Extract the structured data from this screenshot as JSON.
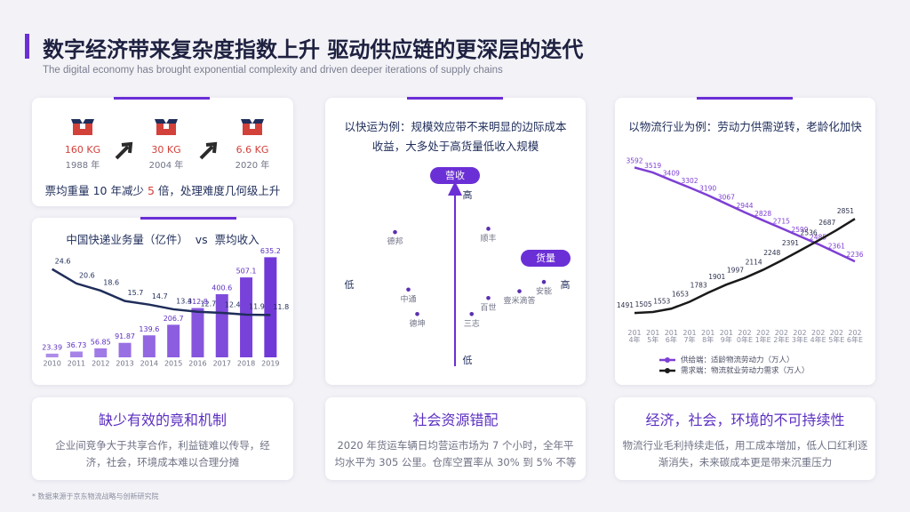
{
  "header": {
    "title": "数字经济带来复杂度指数上升 驱动供应链的更深层的迭代",
    "subtitle": "The digital economy has brought exponential complexity and driven deeper iterations of supply chains"
  },
  "weights": {
    "items": [
      {
        "value": "160 KG",
        "year": "1988 年"
      },
      {
        "value": "30 KG",
        "year": "2004 年"
      },
      {
        "value": "6.6 KG",
        "year": "2020 年"
      }
    ],
    "caption": [
      "票均重量 10 年减少 ",
      "5",
      " 倍，处理难度几何级上升"
    ]
  },
  "chart_data": [
    {
      "type": "bar",
      "legend_separator": "vs",
      "categories": [
        "2010",
        "2011",
        "2012",
        "2013",
        "2014",
        "2015",
        "2016",
        "2017",
        "2018",
        "2019"
      ],
      "series": [
        {
          "name": "中国快递业务量（亿件）",
          "color": "#6b2fd6",
          "values": [
            23.39,
            36.73,
            56.85,
            91.87,
            139.6,
            206.7,
            312.8,
            400.6,
            507.1,
            635.2
          ]
        },
        {
          "name": "票均收入",
          "color": "#1f2d5a",
          "axis": "y2",
          "values": [
            24.6,
            20.6,
            18.6,
            15.7,
            14.7,
            13.4,
            12.7,
            12.4,
            11.9,
            11.8
          ]
        }
      ],
      "ylim": [
        0,
        660
      ],
      "y2lim": [
        0,
        29
      ]
    },
    {
      "type": "scatter",
      "title": "以快运为例：规模效应带不来明显的边际成本收益，大多处于高货量低收入规模",
      "xlabel": "货量",
      "ylabel": "营收",
      "axis_ends": {
        "x_low": "低",
        "x_high": "高",
        "y_low": "低",
        "y_high": "高"
      },
      "labels": [
        "德邦",
        "顺丰",
        "中通",
        "德坤",
        "三志",
        "百世",
        "壹米滴答",
        "安能"
      ],
      "x": [
        -5.4,
        3.0,
        -4.2,
        -3.4,
        1.5,
        3.0,
        5.8,
        8.0
      ],
      "values": [
        6.3,
        6.7,
        -0.5,
        -3.4,
        -3.4,
        -1.5,
        -0.7,
        0.4
      ],
      "color": "#5b2fb0",
      "xlim": [
        -10,
        10
      ],
      "ylim": [
        -10,
        10
      ]
    },
    {
      "type": "line",
      "title": "以物流行业为例：劳动力供需逆转，老龄化加快",
      "categories": [
        "2014年",
        "2015年",
        "2016年",
        "2017年",
        "2018年",
        "2019年",
        "2020年E",
        "2021年E",
        "2022年E",
        "2023年E",
        "2024年E",
        "2025年E",
        "2026年E"
      ],
      "series": [
        {
          "name": "供给端：适龄物流劳动力（万人）",
          "color": "#7e3fd4",
          "values": [
            3592,
            3519,
            3409,
            3302,
            3190,
            3067,
            2944,
            2828,
            2715,
            2599,
            2485,
            2361,
            2236
          ]
        },
        {
          "name": "需求端：物流就业劳动力需求（万人）",
          "color": "#1a1a1a",
          "values": [
            1491,
            1505,
            1553,
            1653,
            1783,
            1901,
            1997,
            2114,
            2248,
            2391,
            2536,
            2687,
            2851
          ]
        }
      ],
      "ylim": [
        1300,
        3700
      ]
    }
  ],
  "cards": [
    {
      "title": "缺少有效的竟和机制",
      "text": "企业间竞争大于共享合作，利益链难以传导，经济，社会，环境成本难以合理分摊"
    },
    {
      "title": "社会资源错配",
      "text": "2020 年货运车辆日均营运市场为 7 个小时，全年平均水平为 305 公里。仓库空置率从 30% 到 5% 不等"
    },
    {
      "title": "经济，社会，环境的不可持续性",
      "text": "物流行业毛利持续走低，用工成本增加，低人口红利逐渐消失，未来碳成本更是带来沉重压力"
    }
  ],
  "footnote": "* 数据来源于京东物流战略与创新研究院"
}
